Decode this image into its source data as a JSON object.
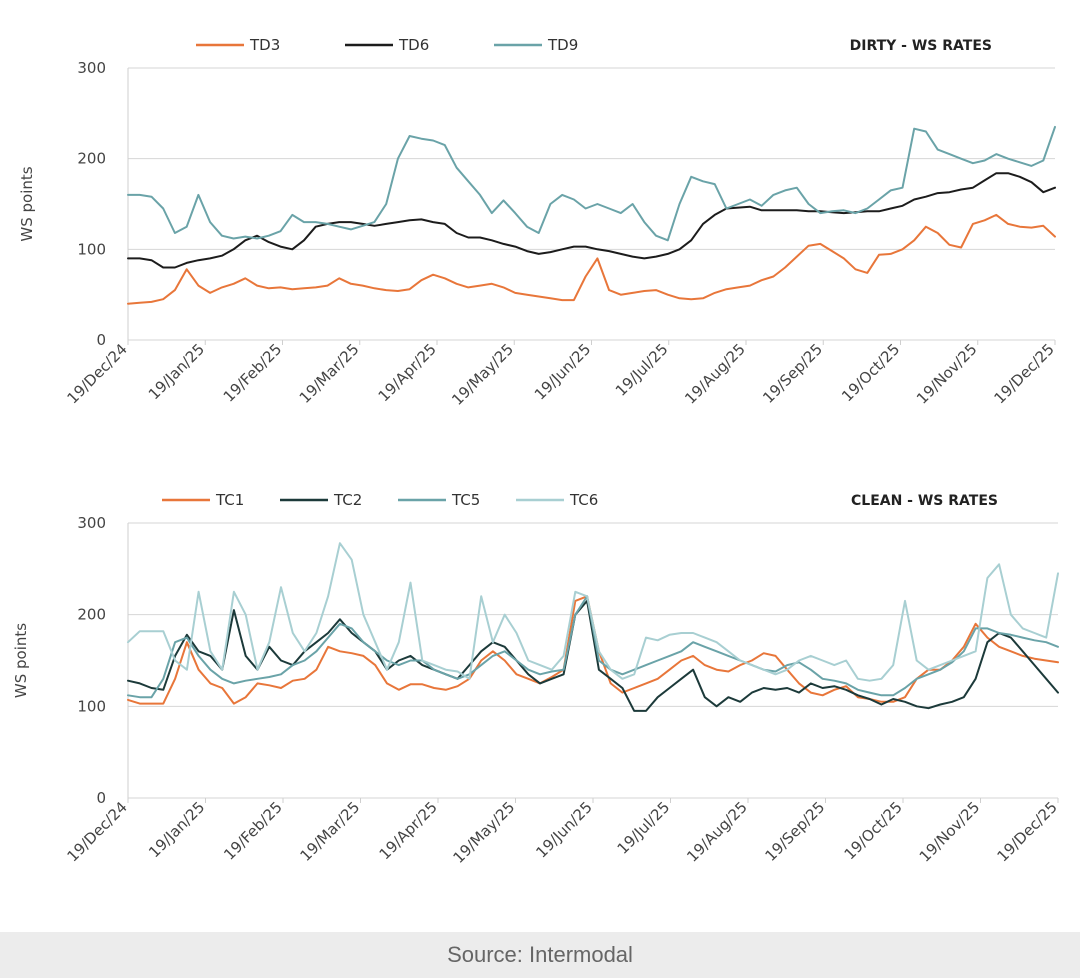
{
  "source": "Source: Intermodal",
  "chart_data": [
    {
      "type": "line",
      "title": "DIRTY - WS RATES",
      "ylabel": "WS points",
      "xlabel": "",
      "ylim": [
        0,
        300
      ],
      "yticks": [
        0,
        100,
        200,
        300
      ],
      "legend_position": "top",
      "xticks": [
        "19/Dec/24",
        "19/Jan/25",
        "19/Feb/25",
        "19/Mar/25",
        "19/Apr/25",
        "19/May/25",
        "19/Jun/25",
        "19/Jul/25",
        "19/Aug/25",
        "19/Sep/25",
        "19/Oct/25",
        "19/Nov/25",
        "19/Dec/25"
      ],
      "series": [
        {
          "name": "TD3",
          "color": "#e8763a",
          "values": [
            40,
            41,
            42,
            45,
            55,
            78,
            60,
            52,
            58,
            62,
            68,
            60,
            57,
            58,
            56,
            57,
            58,
            60,
            68,
            62,
            60,
            57,
            55,
            54,
            56,
            66,
            72,
            68,
            62,
            58,
            60,
            62,
            58,
            52,
            50,
            48,
            46,
            44,
            44,
            70,
            90,
            55,
            50,
            52,
            54,
            55,
            50,
            46,
            45,
            46,
            52,
            56,
            58,
            60,
            66,
            70,
            80,
            92,
            104,
            106,
            98,
            90,
            78,
            74,
            94,
            95,
            100,
            110,
            125,
            118,
            105,
            102,
            128,
            132,
            138,
            128,
            125,
            124,
            126,
            114
          ]
        },
        {
          "name": "TD6",
          "color": "#1c1c1c",
          "values": [
            90,
            90,
            88,
            80,
            80,
            85,
            88,
            90,
            93,
            100,
            110,
            115,
            108,
            103,
            100,
            110,
            125,
            128,
            130,
            130,
            128,
            126,
            128,
            130,
            132,
            133,
            130,
            128,
            118,
            113,
            113,
            110,
            106,
            103,
            98,
            95,
            97,
            100,
            103,
            103,
            100,
            98,
            95,
            92,
            90,
            92,
            95,
            100,
            110,
            128,
            138,
            145,
            146,
            147,
            143,
            143,
            143,
            143,
            142,
            142,
            141,
            140,
            141,
            142,
            142,
            145,
            148,
            155,
            158,
            162,
            163,
            166,
            168,
            176,
            184,
            184,
            180,
            174,
            163,
            168
          ]
        },
        {
          "name": "TD9",
          "color": "#6aa3a8",
          "values": [
            160,
            160,
            158,
            145,
            118,
            125,
            160,
            130,
            115,
            112,
            114,
            112,
            115,
            120,
            138,
            130,
            130,
            128,
            125,
            122,
            126,
            130,
            150,
            200,
            225,
            222,
            220,
            215,
            190,
            175,
            160,
            140,
            154,
            140,
            125,
            118,
            150,
            160,
            155,
            145,
            150,
            145,
            140,
            150,
            130,
            115,
            110,
            150,
            180,
            175,
            172,
            145,
            150,
            155,
            148,
            160,
            165,
            168,
            150,
            140,
            142,
            143,
            140,
            145,
            155,
            165,
            168,
            233,
            230,
            210,
            205,
            200,
            195,
            198,
            205,
            200,
            196,
            192,
            198,
            235
          ]
        }
      ]
    },
    {
      "type": "line",
      "title": "CLEAN - WS RATES",
      "ylabel": "WS points",
      "xlabel": "",
      "ylim": [
        0,
        300
      ],
      "yticks": [
        0,
        100,
        200,
        300
      ],
      "legend_position": "top",
      "xticks": [
        "19/Dec/24",
        "19/Jan/25",
        "19/Feb/25",
        "19/Mar/25",
        "19/Apr/25",
        "19/May/25",
        "19/Jun/25",
        "19/Jul/25",
        "19/Aug/25",
        "19/Sep/25",
        "19/Oct/25",
        "19/Nov/25",
        "19/Dec/25"
      ],
      "series": [
        {
          "name": "TC1",
          "color": "#e8763a",
          "values": [
            107,
            103,
            103,
            103,
            130,
            170,
            140,
            125,
            120,
            103,
            110,
            125,
            123,
            120,
            128,
            130,
            140,
            165,
            160,
            158,
            155,
            145,
            125,
            118,
            124,
            124,
            120,
            118,
            122,
            130,
            150,
            160,
            150,
            135,
            130,
            125,
            132,
            140,
            215,
            220,
            160,
            125,
            115,
            120,
            125,
            130,
            140,
            150,
            155,
            145,
            140,
            138,
            145,
            150,
            158,
            155,
            140,
            125,
            115,
            112,
            118,
            122,
            110,
            108,
            105,
            105,
            110,
            130,
            140,
            140,
            150,
            165,
            190,
            175,
            165,
            160,
            155,
            152,
            150,
            148
          ]
        },
        {
          "name": "TC2",
          "color": "#1c3a3a",
          "values": [
            128,
            125,
            120,
            118,
            155,
            178,
            160,
            155,
            140,
            205,
            155,
            140,
            165,
            150,
            145,
            160,
            170,
            180,
            195,
            180,
            170,
            160,
            140,
            150,
            155,
            145,
            140,
            135,
            130,
            145,
            160,
            170,
            165,
            150,
            135,
            125,
            130,
            135,
            200,
            215,
            140,
            130,
            120,
            95,
            95,
            110,
            120,
            130,
            140,
            110,
            100,
            110,
            105,
            115,
            120,
            118,
            120,
            115,
            125,
            120,
            122,
            118,
            112,
            108,
            102,
            108,
            105,
            100,
            98,
            102,
            105,
            110,
            130,
            170,
            180,
            175,
            160,
            145,
            130,
            115
          ]
        },
        {
          "name": "TC5",
          "color": "#6aa3a8",
          "values": [
            112,
            110,
            110,
            130,
            170,
            175,
            155,
            140,
            130,
            125,
            128,
            130,
            132,
            135,
            145,
            150,
            160,
            175,
            190,
            185,
            170,
            160,
            150,
            145,
            150,
            150,
            140,
            135,
            130,
            135,
            145,
            155,
            160,
            150,
            140,
            135,
            138,
            140,
            200,
            220,
            150,
            140,
            135,
            140,
            145,
            150,
            155,
            160,
            170,
            165,
            160,
            155,
            150,
            145,
            140,
            138,
            145,
            148,
            140,
            130,
            128,
            125,
            118,
            115,
            112,
            112,
            120,
            130,
            135,
            140,
            148,
            160,
            185,
            185,
            180,
            178,
            175,
            172,
            170,
            165
          ]
        },
        {
          "name": "TC6",
          "color": "#a8cfd2",
          "values": [
            170,
            182,
            182,
            182,
            150,
            140,
            225,
            160,
            140,
            225,
            200,
            140,
            170,
            230,
            180,
            160,
            180,
            220,
            278,
            260,
            200,
            170,
            140,
            170,
            235,
            150,
            145,
            140,
            138,
            130,
            220,
            170,
            200,
            180,
            150,
            145,
            140,
            155,
            225,
            220,
            160,
            140,
            130,
            135,
            175,
            172,
            178,
            180,
            180,
            175,
            170,
            160,
            150,
            145,
            140,
            135,
            140,
            150,
            155,
            150,
            145,
            150,
            130,
            128,
            130,
            145,
            215,
            150,
            140,
            145,
            150,
            155,
            160,
            240,
            255,
            200,
            185,
            180,
            175,
            245
          ]
        }
      ]
    }
  ]
}
